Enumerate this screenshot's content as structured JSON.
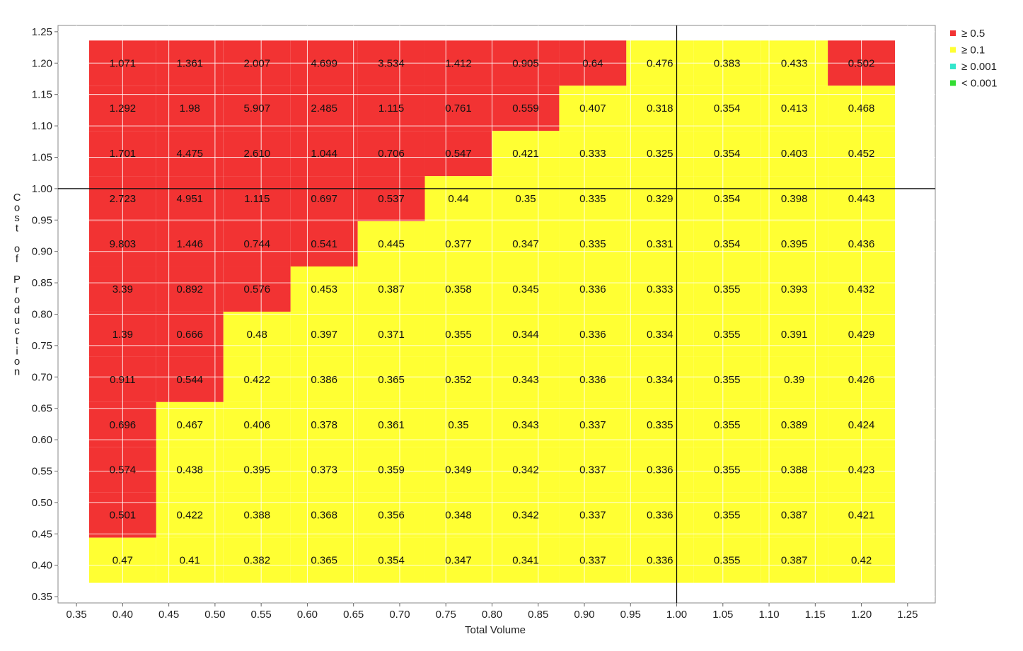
{
  "chart_data": {
    "type": "heatmap",
    "title": "",
    "xlabel": "Total Volume",
    "ylabel": "Cost of Production",
    "xlim": [
      0.33,
      1.28
    ],
    "ylim": [
      0.34,
      1.26
    ],
    "x_ticks": [
      "0.35",
      "0.40",
      "0.45",
      "0.50",
      "0.55",
      "0.60",
      "0.65",
      "0.70",
      "0.75",
      "0.80",
      "0.85",
      "0.90",
      "0.95",
      "1.00",
      "1.05",
      "1.10",
      "1.15",
      "1.20",
      "1.25"
    ],
    "y_ticks": [
      "0.35",
      "0.40",
      "0.45",
      "0.50",
      "0.55",
      "0.60",
      "0.65",
      "0.70",
      "0.75",
      "0.80",
      "0.85",
      "0.90",
      "0.95",
      "1.00",
      "1.05",
      "1.10",
      "1.15",
      "1.20",
      "1.25"
    ],
    "x": [
      0.4,
      0.4727,
      0.5455,
      0.6182,
      0.6909,
      0.7636,
      0.8364,
      0.9091,
      0.9818,
      1.0545,
      1.1273,
      1.2
    ],
    "y": [
      1.2,
      1.128,
      1.056,
      0.984,
      0.912,
      0.84,
      0.768,
      0.696,
      0.624,
      0.552,
      0.48,
      0.408
    ],
    "cell_width": 0.0727,
    "cell_height": 0.072,
    "values": [
      [
        "1.071",
        "1.361",
        "2.007",
        "4.699",
        "3.534",
        "1.412",
        "0.905",
        "0.64",
        "0.476",
        "0.383",
        "0.433",
        "0.502"
      ],
      [
        "1.292",
        "1.98",
        "5.907",
        "2.485",
        "1.115",
        "0.761",
        "0.559",
        "0.407",
        "0.318",
        "0.354",
        "0.413",
        "0.468"
      ],
      [
        "1.701",
        "4.475",
        "2.610",
        "1.044",
        "0.706",
        "0.547",
        "0.421",
        "0.333",
        "0.325",
        "0.354",
        "0.403",
        "0.452"
      ],
      [
        "2.723",
        "4.951",
        "1.115",
        "0.697",
        "0.537",
        "0.44",
        "0.35",
        "0.335",
        "0.329",
        "0.354",
        "0.398",
        "0.443"
      ],
      [
        "9.803",
        "1.446",
        "0.744",
        "0.541",
        "0.445",
        "0.377",
        "0.347",
        "0.335",
        "0.331",
        "0.354",
        "0.395",
        "0.436"
      ],
      [
        "3.39",
        "0.892",
        "0.576",
        "0.453",
        "0.387",
        "0.358",
        "0.345",
        "0.336",
        "0.333",
        "0.355",
        "0.393",
        "0.432"
      ],
      [
        "1.39",
        "0.666",
        "0.48",
        "0.397",
        "0.371",
        "0.355",
        "0.344",
        "0.336",
        "0.334",
        "0.355",
        "0.391",
        "0.429"
      ],
      [
        "0.911",
        "0.544",
        "0.422",
        "0.386",
        "0.365",
        "0.352",
        "0.343",
        "0.336",
        "0.334",
        "0.355",
        "0.39",
        "0.426"
      ],
      [
        "0.696",
        "0.467",
        "0.406",
        "0.378",
        "0.361",
        "0.35",
        "0.343",
        "0.337",
        "0.335",
        "0.355",
        "0.389",
        "0.424"
      ],
      [
        "0.574",
        "0.438",
        "0.395",
        "0.373",
        "0.359",
        "0.349",
        "0.342",
        "0.337",
        "0.336",
        "0.355",
        "0.388",
        "0.423"
      ],
      [
        "0.501",
        "0.422",
        "0.388",
        "0.368",
        "0.356",
        "0.348",
        "0.342",
        "0.337",
        "0.336",
        "0.355",
        "0.387",
        "0.421"
      ],
      [
        "0.47",
        "0.41",
        "0.382",
        "0.365",
        "0.354",
        "0.347",
        "0.341",
        "0.337",
        "0.336",
        "0.355",
        "0.387",
        "0.42"
      ]
    ],
    "reference_lines": {
      "x": 1.0,
      "y": 1.0
    },
    "grid": true,
    "legend_position": "top-right",
    "legend": [
      {
        "label": "≥  0.5",
        "color": "#f23333",
        "threshold": 0.5
      },
      {
        "label": "≥  0.1",
        "color": "#ffff33",
        "threshold": 0.1
      },
      {
        "label": "≥ 0.001",
        "color": "#33e6cc",
        "threshold": 0.001
      },
      {
        "label": "< 0.001",
        "color": "#33dd33",
        "threshold": 0
      }
    ]
  }
}
